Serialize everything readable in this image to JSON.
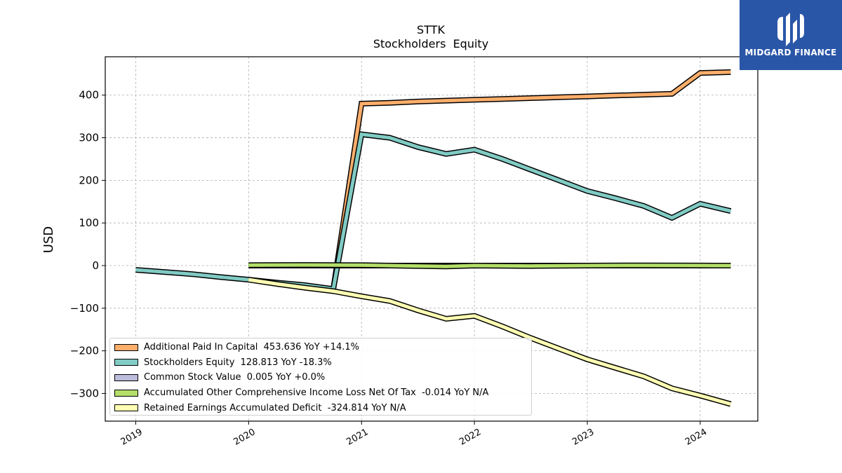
{
  "header": {
    "ticker": "STTK",
    "subtitle": "Stockholders  Equity"
  },
  "brand": {
    "name": "MIDGARD FINANCE",
    "background": "#2a56a8"
  },
  "chart_data": {
    "type": "line",
    "title": "STTK",
    "subtitle": "Stockholders  Equity",
    "xlabel": "",
    "ylabel": "USD",
    "xlim": [
      2018.73,
      2024.51
    ],
    "ylim": [
      -365,
      490
    ],
    "x_ticks": [
      2019,
      2020,
      2021,
      2022,
      2023,
      2024
    ],
    "x_tick_labels": [
      "2019",
      "2020",
      "2021",
      "2022",
      "2023",
      "2024"
    ],
    "y_ticks": [
      -300,
      -200,
      -100,
      0,
      100,
      200,
      300,
      400
    ],
    "y_tick_labels": [
      "−300",
      "−200",
      "−100",
      "0",
      "100",
      "200",
      "300",
      "400"
    ],
    "grid": true,
    "legend_position": "lower-left",
    "series": [
      {
        "name": "Additional Paid In Capital",
        "legend": "Additional Paid In Capital  453.636 YoY +14.1%",
        "color": "#fdae6b",
        "x": [
          2020.75,
          2021.0,
          2021.25,
          2021.5,
          2021.75,
          2022.0,
          2022.25,
          2022.5,
          2022.75,
          2023.0,
          2023.25,
          2023.5,
          2023.75,
          2024.0,
          2024.27
        ],
        "y": [
          -55,
          380,
          382,
          385,
          387,
          389,
          391,
          393,
          395,
          397,
          399,
          401,
          403,
          452,
          454
        ]
      },
      {
        "name": "Stockholders Equity",
        "legend": "Stockholders Equity  128.813 YoY -18.3%",
        "color": "#80cbc4",
        "x": [
          2019.0,
          2019.25,
          2019.5,
          2019.75,
          2020.0,
          2020.25,
          2020.5,
          2020.75,
          2021.0,
          2021.25,
          2021.5,
          2021.75,
          2022.0,
          2022.25,
          2022.5,
          2022.75,
          2023.0,
          2023.25,
          2023.5,
          2023.75,
          2024.0,
          2024.27
        ],
        "y": [
          -10,
          -15,
          -20,
          -27,
          -33,
          -40,
          -46,
          -55,
          308,
          300,
          278,
          262,
          272,
          250,
          225,
          200,
          175,
          158,
          140,
          112,
          145,
          128
        ]
      },
      {
        "name": "Common Stock Value",
        "legend": "Common Stock Value  0.005 YoY +0.0%",
        "color": "#bcbddc",
        "x": [
          2020.0,
          2021.0,
          2022.0,
          2023.0,
          2024.27
        ],
        "y": [
          0.005,
          0.005,
          0.005,
          0.005,
          0.005
        ]
      },
      {
        "name": "Accumulated Other Comprehensive Income Loss Net Of Tax",
        "legend": "Accumulated Other Comprehensive Income Loss Net Of Tax  -0.014 YoY N/A",
        "color": "#b3de69",
        "x": [
          2020.0,
          2020.5,
          2021.0,
          2021.5,
          2021.75,
          2022.0,
          2022.5,
          2023.0,
          2023.5,
          2024.0,
          2024.27
        ],
        "y": [
          1,
          1.5,
          1,
          -1,
          -2,
          0,
          -1,
          0,
          0.5,
          0.2,
          -0.014
        ]
      },
      {
        "name": "Retained Earnings Accumulated Deficit",
        "legend": "Retained Earnings Accumulated Deficit  -324.814 YoY N/A",
        "color": "#ffffb3",
        "x": [
          2020.0,
          2020.25,
          2020.5,
          2020.75,
          2021.0,
          2021.25,
          2021.5,
          2021.75,
          2022.0,
          2022.25,
          2022.5,
          2022.75,
          2023.0,
          2023.25,
          2023.5,
          2023.75,
          2024.0,
          2024.27
        ],
        "y": [
          -33,
          -43,
          -52,
          -60,
          -72,
          -83,
          -105,
          -125,
          -118,
          -143,
          -170,
          -195,
          -220,
          -240,
          -260,
          -288,
          -305,
          -324.8
        ]
      }
    ]
  }
}
